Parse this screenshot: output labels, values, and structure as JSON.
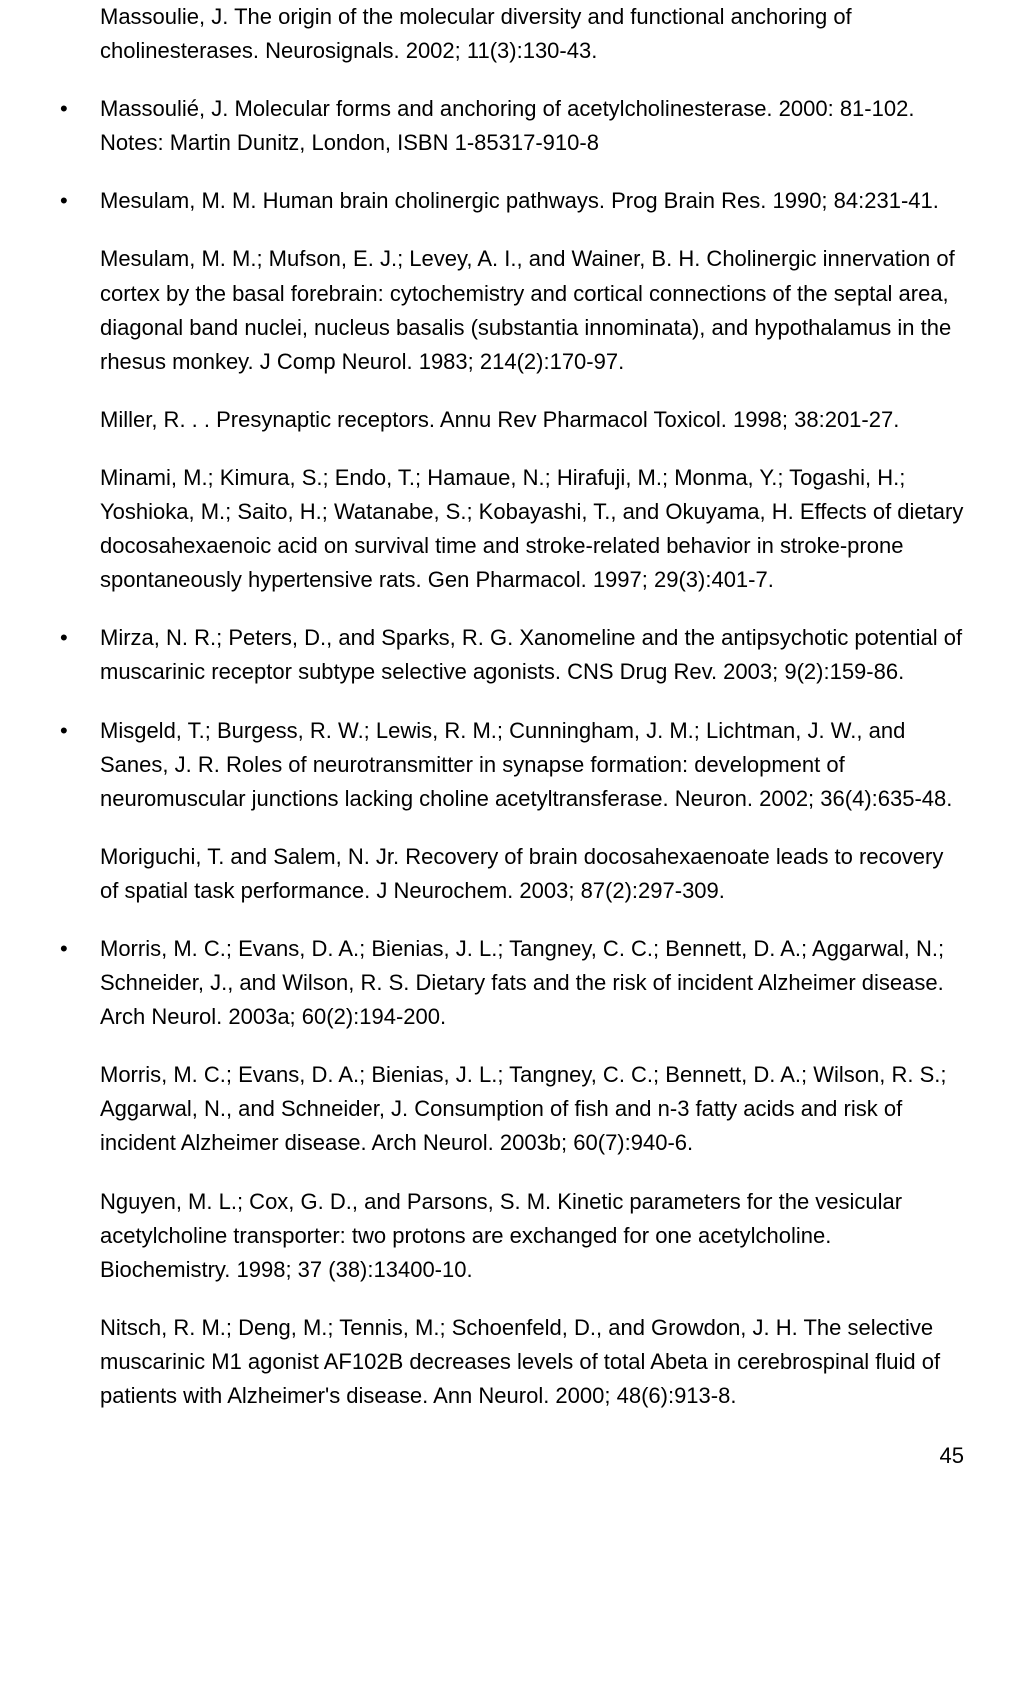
{
  "references": [
    {
      "bulleted": false,
      "text": "Massoulie, J. The origin of the molecular diversity and functional anchoring of cholinesterases. Neurosignals. 2002; 11(3):130-43."
    },
    {
      "bulleted": true,
      "text": "Massoulié, J. Molecular forms and anchoring of acetylcholinesterase. 2000: 81-102. Notes: Martin Dunitz, London, ISBN 1-85317-910-8"
    },
    {
      "bulleted": true,
      "text": "Mesulam, M. M. Human brain cholinergic pathways. Prog Brain Res. 1990; 84:231-41."
    },
    {
      "bulleted": false,
      "text": "Mesulam, M. M.; Mufson, E. J.; Levey, A. I., and Wainer, B. H. Cholinergic innervation of cortex by the basal forebrain: cytochemistry and cortical connections of the septal area, diagonal band nuclei, nucleus basalis (substantia innominata), and hypothalamus in the rhesus monkey. J Comp Neurol. 1983; 214(2):170-97."
    },
    {
      "bulleted": false,
      "text": "Miller, R. . . Presynaptic receptors. Annu Rev Pharmacol Toxicol. 1998; 38:201-27."
    },
    {
      "bulleted": false,
      "text": "Minami, M.; Kimura, S.; Endo, T.; Hamaue, N.; Hirafuji, M.; Monma, Y.; Togashi, H.; Yoshioka, M.; Saito, H.; Watanabe, S.; Kobayashi, T., and Okuyama, H. Effects of dietary docosahexaenoic acid on survival time and stroke-related behavior in stroke-prone spontaneously hypertensive rats. Gen Pharmacol. 1997; 29(3):401-7."
    },
    {
      "bulleted": true,
      "text": "Mirza, N. R.; Peters, D., and Sparks, R. G. Xanomeline and the antipsychotic potential of muscarinic receptor subtype selective agonists. CNS Drug Rev. 2003; 9(2):159-86."
    },
    {
      "bulleted": true,
      "text": "Misgeld, T.; Burgess, R. W.; Lewis, R. M.; Cunningham, J. M.; Lichtman, J. W., and Sanes, J. R. Roles of neurotransmitter in synapse formation: development of neuromuscular junctions lacking choline acetyltransferase. Neuron. 2002; 36(4):635-48."
    },
    {
      "bulleted": false,
      "text": "Moriguchi, T. and Salem, N. Jr. Recovery of brain docosahexaenoate leads to recovery of spatial task performance. J Neurochem. 2003; 87(2):297-309."
    },
    {
      "bulleted": true,
      "text": "Morris, M. C.; Evans, D. A.; Bienias, J. L.; Tangney, C. C.; Bennett, D. A.; Aggarwal, N.; Schneider, J., and Wilson, R. S. Dietary fats and the risk of incident Alzheimer disease. Arch Neurol. 2003a; 60(2):194-200."
    },
    {
      "bulleted": false,
      "text": "Morris, M. C.; Evans, D. A.; Bienias, J. L.; Tangney, C. C.; Bennett, D. A.; Wilson, R. S.; Aggarwal, N., and Schneider, J. Consumption of fish and n-3 fatty acids and risk of incident Alzheimer disease. Arch Neurol. 2003b; 60(7):940-6."
    },
    {
      "bulleted": false,
      "text": "Nguyen, M. L.; Cox, G. D., and Parsons, S. M. Kinetic parameters for the vesicular acetylcholine transporter: two protons are exchanged for one acetylcholine. Biochemistry. 1998; 37 (38):13400-10."
    },
    {
      "bulleted": false,
      "text": "Nitsch, R. M.; Deng, M.; Tennis, M.; Schoenfeld, D., and Growdon, J. H. The selective muscarinic M1 agonist AF102B decreases levels of total Abeta in cerebrospinal fluid of patients with Alzheimer's disease. Ann Neurol. 2000; 48(6):913-8."
    }
  ],
  "page_number": "45"
}
